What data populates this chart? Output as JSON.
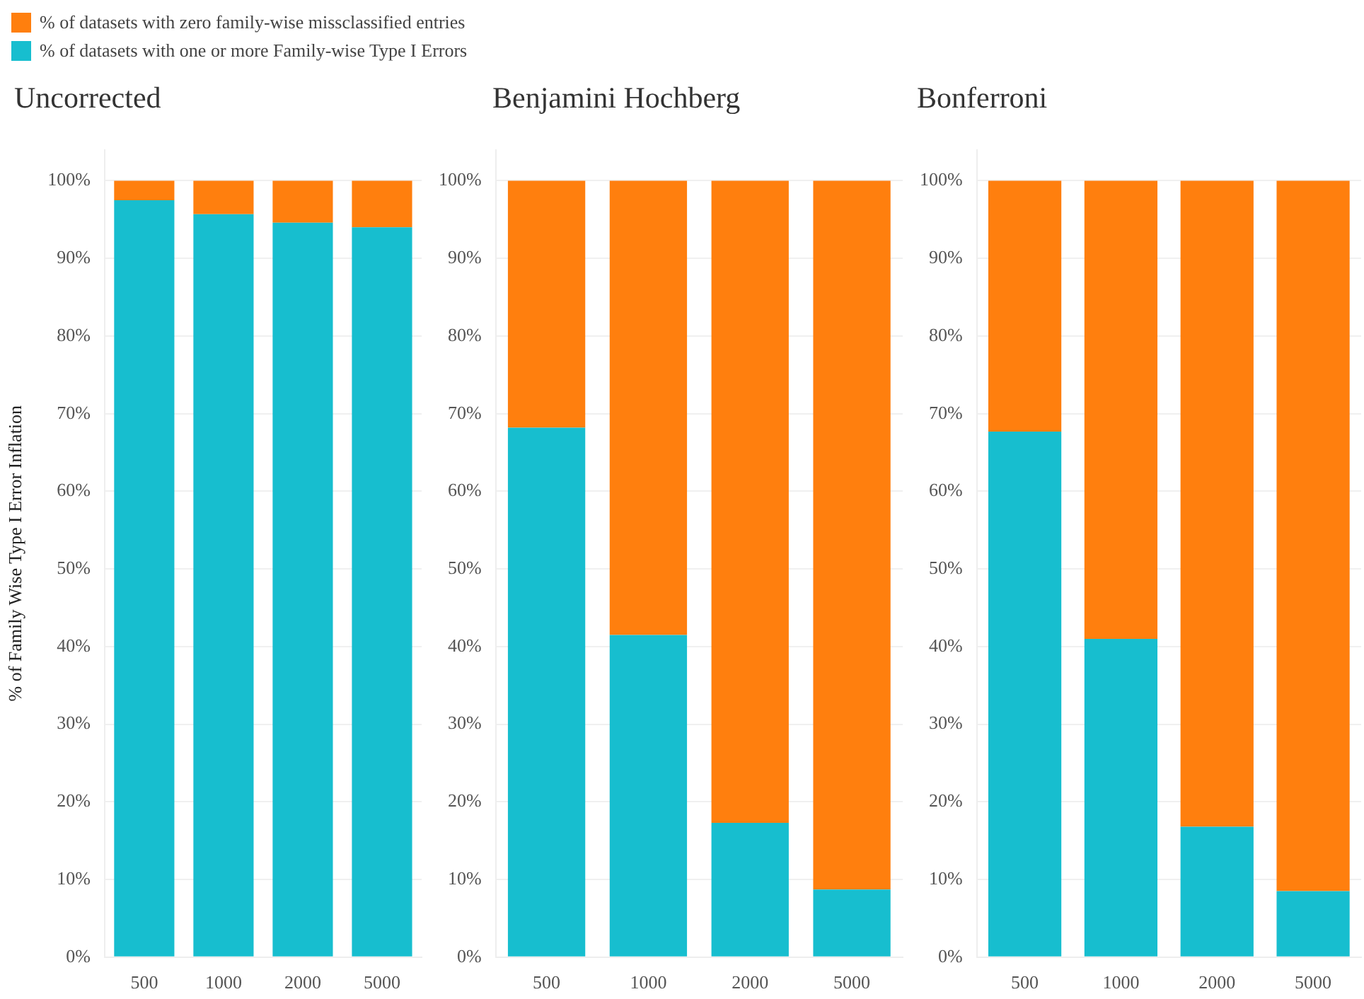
{
  "chart_data": [
    {
      "type": "bar",
      "title": "Uncorrected",
      "ylabel": "% of Family Wise Type I Error Inflation",
      "categories": [
        "500",
        "1000",
        "2000",
        "5000"
      ],
      "stacked": true,
      "legend": "top left",
      "grid": "y",
      "series": [
        {
          "name": "% of datasets with one or more Family-wise Type I Errors",
          "color": "#17becf",
          "values": [
            97.5,
            95.7,
            94.6,
            94.0
          ]
        },
        {
          "name": "% of datasets with zero family-wise missclassified entries",
          "color": "#ff7f0e",
          "values": [
            2.5,
            4.3,
            5.4,
            6.0
          ]
        }
      ],
      "ylim": [
        0,
        104
      ],
      "yticks": [
        {
          "value": 0,
          "label": "0%"
        },
        {
          "value": 10,
          "label": "10%"
        },
        {
          "value": 20,
          "label": "20%"
        },
        {
          "value": 30,
          "label": "30%"
        },
        {
          "value": 40,
          "label": "40%"
        },
        {
          "value": 50,
          "label": "50%"
        },
        {
          "value": 60,
          "label": "60%"
        },
        {
          "value": 70,
          "label": "70%"
        },
        {
          "value": 80,
          "label": "80%"
        },
        {
          "value": 90,
          "label": "90%"
        },
        {
          "value": 100,
          "label": "100%"
        }
      ]
    },
    {
      "type": "bar",
      "title": "Benjamini Hochberg",
      "categories": [
        "500",
        "1000",
        "2000",
        "5000"
      ],
      "stacked": true,
      "grid": "y",
      "series": [
        {
          "color": "#17becf",
          "values": [
            68.2,
            41.5,
            17.3,
            8.7
          ]
        },
        {
          "color": "#ff7f0e",
          "values": [
            31.8,
            58.5,
            82.7,
            91.3
          ]
        }
      ],
      "ylim": [
        0,
        104
      ],
      "yticks": [
        {
          "value": 0,
          "label": "0%"
        },
        {
          "value": 10,
          "label": "10%"
        },
        {
          "value": 20,
          "label": "20%"
        },
        {
          "value": 30,
          "label": "30%"
        },
        {
          "value": 40,
          "label": "40%"
        },
        {
          "value": 50,
          "label": "50%"
        },
        {
          "value": 60,
          "label": "60%"
        },
        {
          "value": 70,
          "label": "70%"
        },
        {
          "value": 80,
          "label": "80%"
        },
        {
          "value": 90,
          "label": "90%"
        },
        {
          "value": 100,
          "label": "100%"
        }
      ]
    },
    {
      "type": "bar",
      "title": "Bonferroni",
      "categories": [
        "500",
        "1000",
        "2000",
        "5000"
      ],
      "stacked": true,
      "grid": "y",
      "series": [
        {
          "color": "#17becf",
          "values": [
            67.7,
            41.0,
            16.8,
            8.5
          ]
        },
        {
          "color": "#ff7f0e",
          "values": [
            32.3,
            59.0,
            83.2,
            91.5
          ]
        }
      ],
      "ylim": [
        0,
        104
      ],
      "yticks": [
        {
          "value": 0,
          "label": "0%"
        },
        {
          "value": 10,
          "label": "10%"
        },
        {
          "value": 20,
          "label": "20%"
        },
        {
          "value": 30,
          "label": "30%"
        },
        {
          "value": 40,
          "label": "40%"
        },
        {
          "value": 50,
          "label": "50%"
        },
        {
          "value": 60,
          "label": "60%"
        },
        {
          "value": 70,
          "label": "70%"
        },
        {
          "value": 80,
          "label": "80%"
        },
        {
          "value": 90,
          "label": "90%"
        },
        {
          "value": 100,
          "label": "100%"
        }
      ]
    }
  ]
}
